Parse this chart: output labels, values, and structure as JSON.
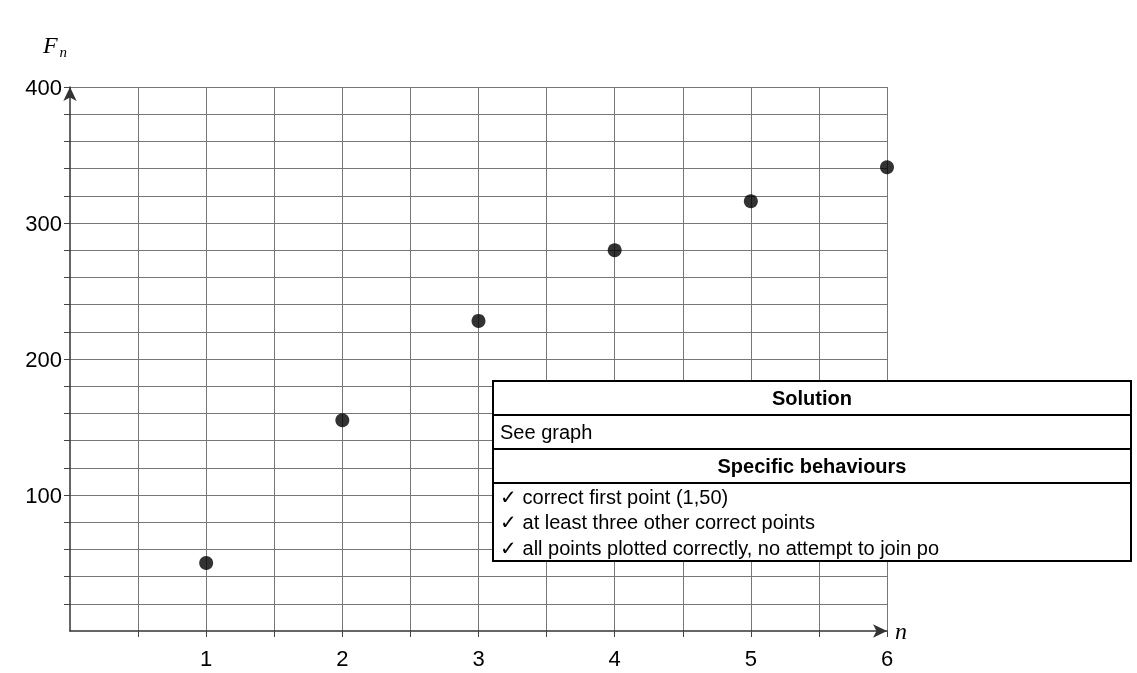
{
  "chart_data": {
    "type": "scatter",
    "xlabel": "n",
    "ylabel": "F$_{n}$",
    "x": [
      1,
      2,
      3,
      4,
      5,
      6
    ],
    "series": [
      {
        "color": "#000000",
        "values": [
          50,
          155,
          228,
          280,
          316,
          341
        ]
      }
    ],
    "xlim": [
      0,
      6
    ],
    "ylim": [
      0,
      400
    ],
    "xticks": [
      {
        "value": 0.5,
        "label": null
      },
      1,
      {
        "value": 1.5,
        "label": null
      },
      2,
      {
        "value": 2.5,
        "label": null
      },
      3,
      {
        "value": 3.5,
        "label": null
      },
      4,
      {
        "value": 4.5,
        "label": null
      },
      5,
      {
        "value": 5.5,
        "label": null
      },
      6
    ],
    "yticks": [
      {
        "value": 20,
        "label": null
      },
      {
        "value": 40,
        "label": null
      },
      {
        "value": 60,
        "label": null
      },
      {
        "value": 80,
        "label": null
      },
      100,
      {
        "value": 120,
        "label": null
      },
      {
        "value": 140,
        "label": null
      },
      {
        "value": 160,
        "label": null
      },
      {
        "value": 180,
        "label": null
      },
      200,
      {
        "value": 220,
        "label": null
      },
      {
        "value": 240,
        "label": null
      },
      {
        "value": 260,
        "label": null
      },
      {
        "value": 280,
        "label": null
      },
      300,
      {
        "value": 320,
        "label": null
      },
      {
        "value": 340,
        "label": null
      },
      {
        "value": 360,
        "label": null
      },
      {
        "value": 380,
        "label": null
      },
      400
    ],
    "grid": true,
    "marker": "circle",
    "annotations": [
      "Solution",
      "See graph",
      "Specific behaviours",
      "✓ correct first point (1,50)",
      "✓ at least three other correct points",
      "✓ all points plotted correctly, no attempt to join po"
    ]
  }
}
